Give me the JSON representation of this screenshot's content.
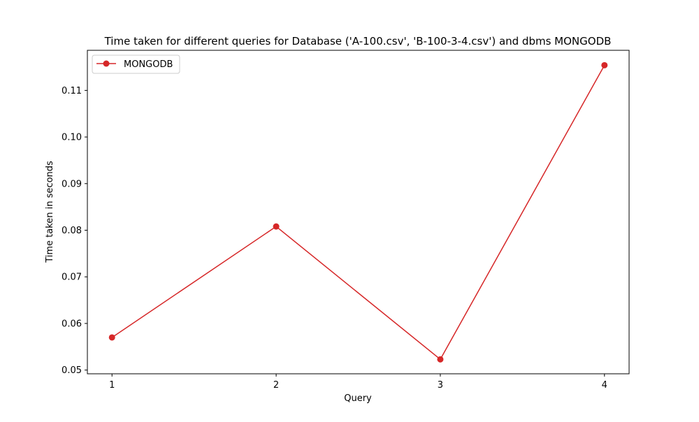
{
  "chart_data": {
    "type": "line",
    "title": "Time taken for different queries for Database ('A-100.csv', 'B-100-3-4.csv') and dbms MONGODB",
    "xlabel": "Query",
    "ylabel": "Time taken in seconds",
    "x": [
      1,
      2,
      3,
      4
    ],
    "x_ticks": [
      "1",
      "2",
      "3",
      "4"
    ],
    "y_ticks": [
      "0.05",
      "0.06",
      "0.07",
      "0.08",
      "0.09",
      "0.10",
      "0.11"
    ],
    "y_tick_values": [
      0.05,
      0.06,
      0.07,
      0.08,
      0.09,
      0.1,
      0.11
    ],
    "xlim": [
      0.85,
      4.15
    ],
    "ylim": [
      0.0492,
      0.1186
    ],
    "grid": false,
    "legend_position": "top-left",
    "series": [
      {
        "name": "MONGODB",
        "color": "#d62728",
        "marker": "circle",
        "values": [
          0.057,
          0.0808,
          0.0523,
          0.1154
        ]
      }
    ]
  }
}
